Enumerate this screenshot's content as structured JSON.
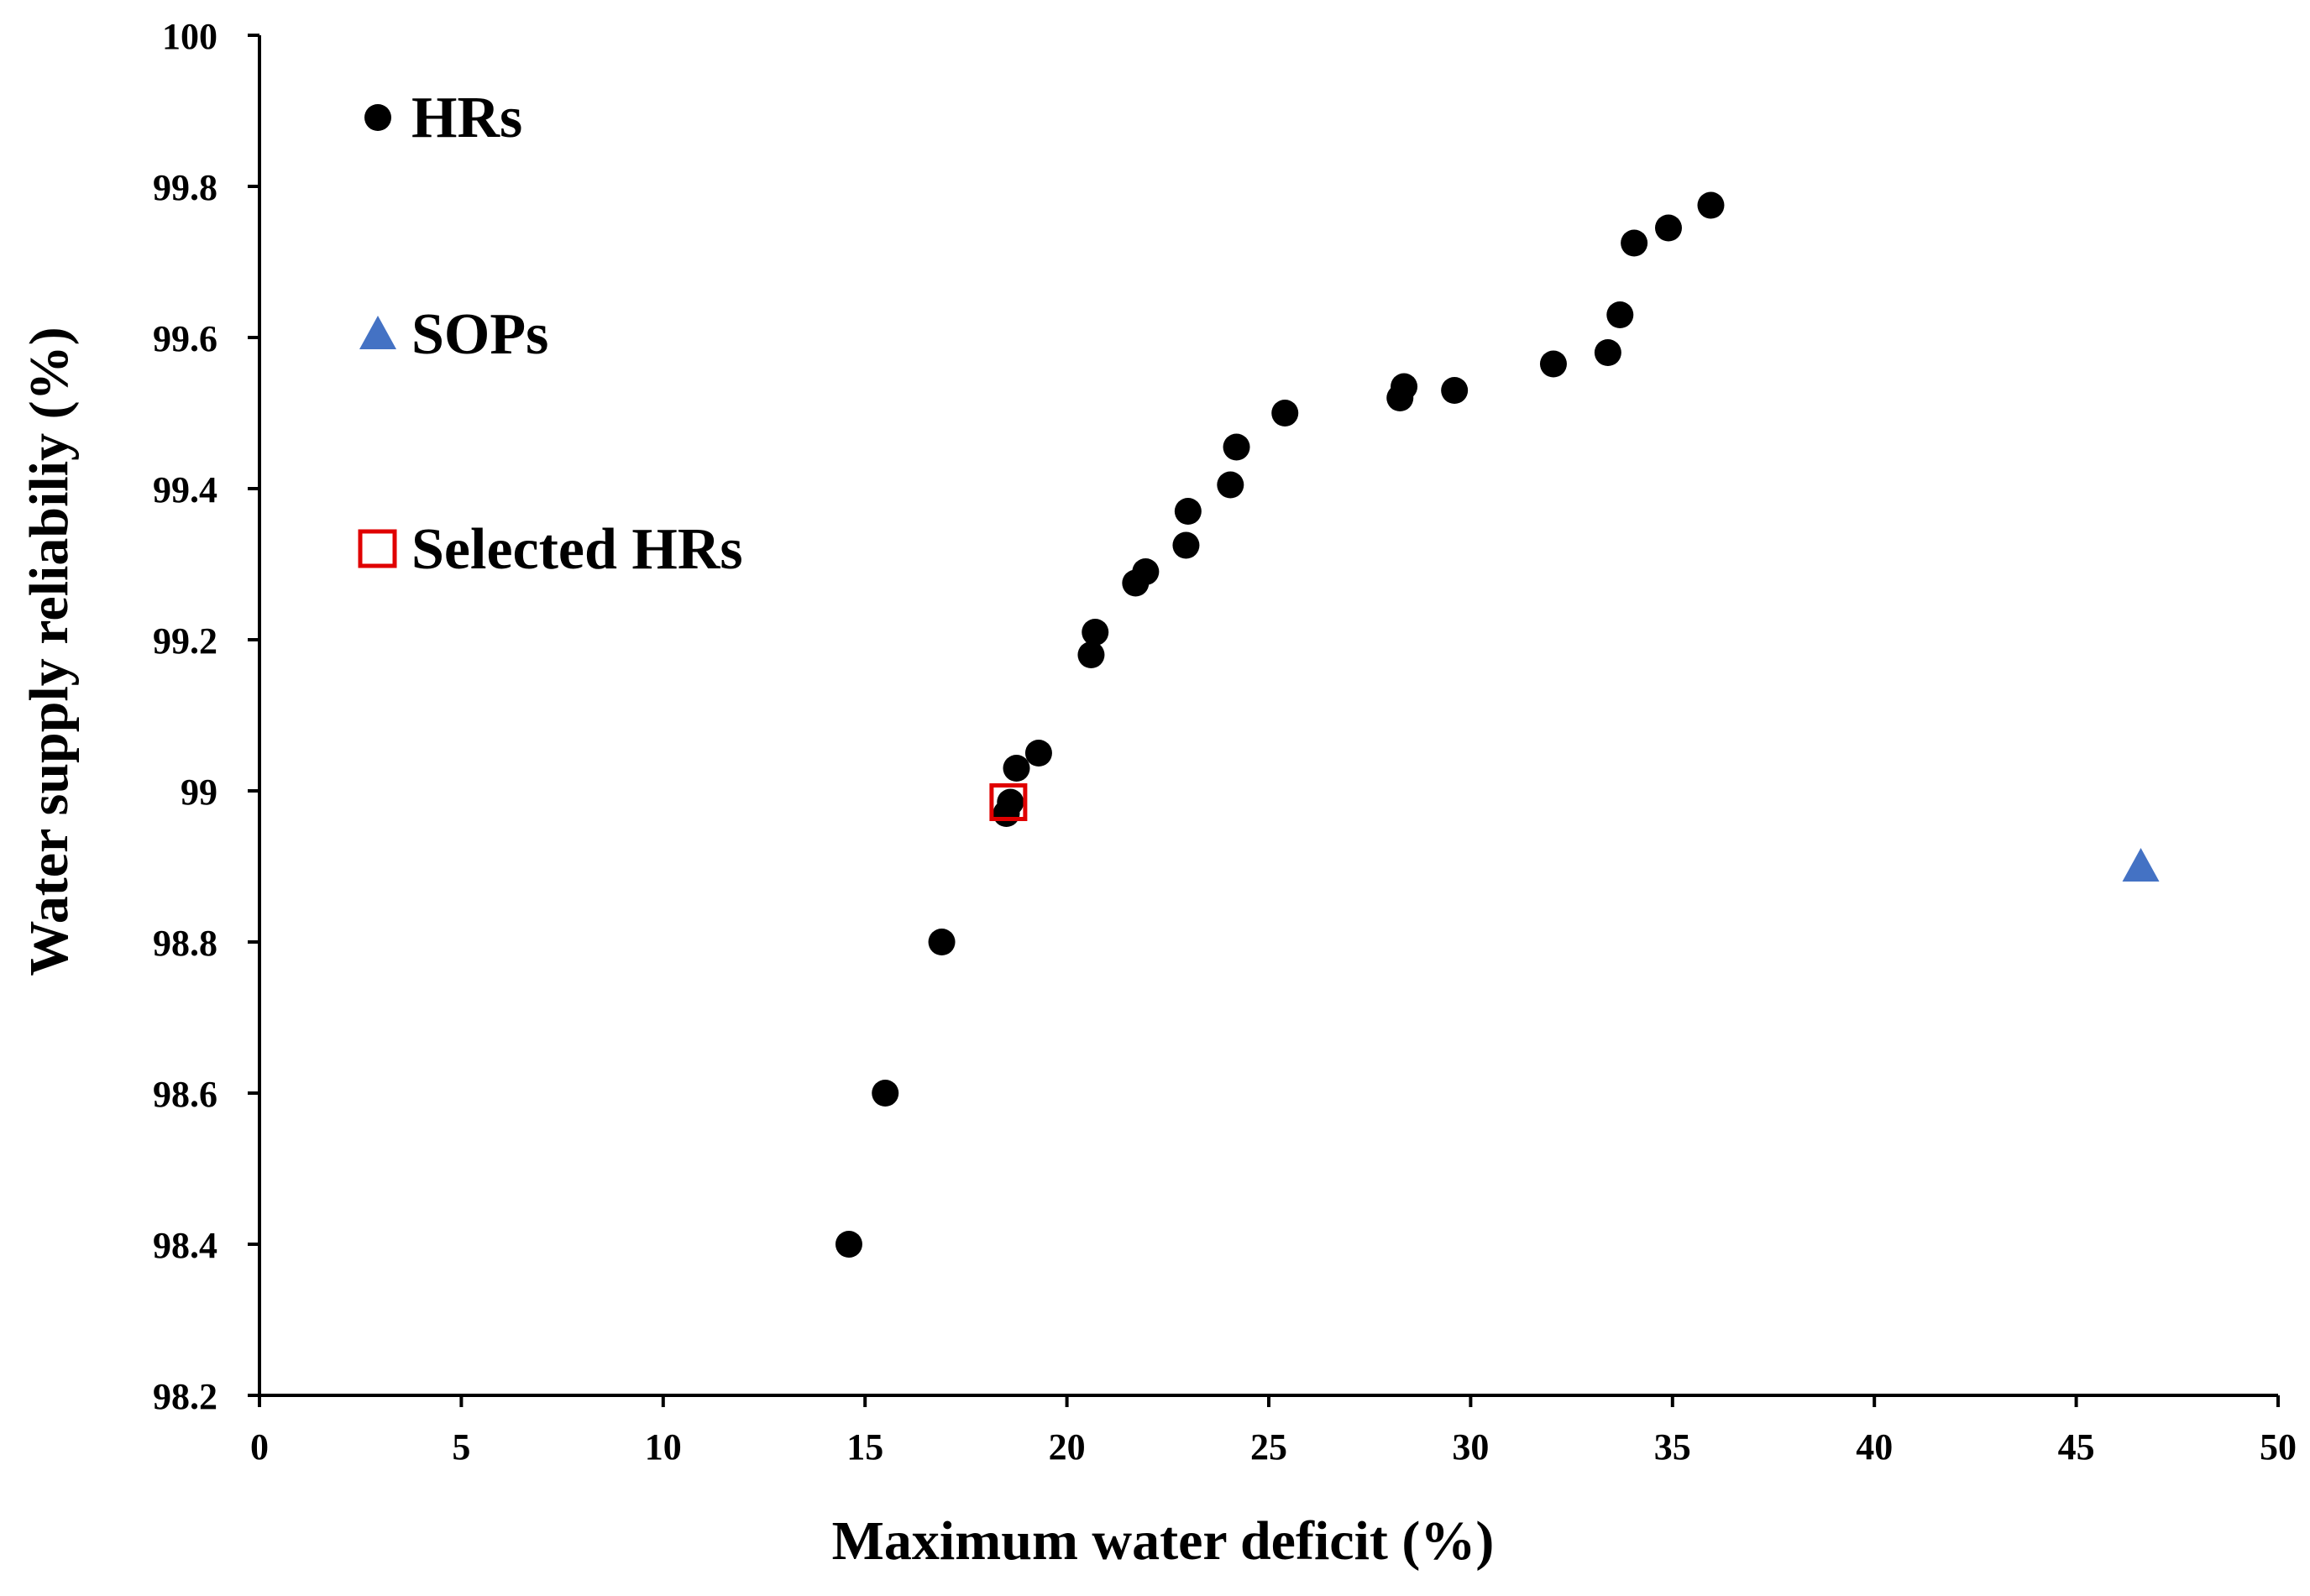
{
  "chart_data": {
    "type": "scatter",
    "title": "",
    "xlabel": "Maximum water deficit (%)",
    "ylabel": "Water supply reliabiliy (%)",
    "xlim": [
      0,
      50
    ],
    "ylim": [
      98.2,
      100
    ],
    "x_ticks": [
      "0",
      "5",
      "10",
      "15",
      "20",
      "25",
      "30",
      "35",
      "40",
      "45",
      "50"
    ],
    "y_ticks": [
      "98.2",
      "98.4",
      "98.6",
      "98.8",
      "99",
      "99.2",
      "99.4",
      "99.6",
      "99.8",
      "100"
    ],
    "grid": false,
    "legend_position": "top-left",
    "series": [
      {
        "name": "HRs",
        "marker": "circle",
        "color": "#000000",
        "points": [
          {
            "x": 14.6,
            "y": 98.4
          },
          {
            "x": 15.5,
            "y": 98.6
          },
          {
            "x": 16.9,
            "y": 98.8
          },
          {
            "x": 18.5,
            "y": 98.97
          },
          {
            "x": 18.6,
            "y": 98.985
          },
          {
            "x": 18.75,
            "y": 99.03
          },
          {
            "x": 19.3,
            "y": 99.05
          },
          {
            "x": 20.6,
            "y": 99.18
          },
          {
            "x": 20.7,
            "y": 99.21
          },
          {
            "x": 21.7,
            "y": 99.275
          },
          {
            "x": 21.95,
            "y": 99.29
          },
          {
            "x": 22.95,
            "y": 99.325
          },
          {
            "x": 23.0,
            "y": 99.37
          },
          {
            "x": 24.05,
            "y": 99.405
          },
          {
            "x": 24.2,
            "y": 99.455
          },
          {
            "x": 25.4,
            "y": 99.5
          },
          {
            "x": 28.25,
            "y": 99.52
          },
          {
            "x": 28.35,
            "y": 99.535
          },
          {
            "x": 29.6,
            "y": 99.53
          },
          {
            "x": 32.05,
            "y": 99.565
          },
          {
            "x": 33.4,
            "y": 99.58
          },
          {
            "x": 33.7,
            "y": 99.63
          },
          {
            "x": 34.05,
            "y": 99.725
          },
          {
            "x": 34.9,
            "y": 99.745
          },
          {
            "x": 35.95,
            "y": 99.775
          }
        ]
      },
      {
        "name": "SOPs",
        "marker": "triangle",
        "color": "#4472C4",
        "points": [
          {
            "x": 46.6,
            "y": 98.9
          }
        ]
      },
      {
        "name": "Selected HRs",
        "marker": "open-square",
        "color": "#E00000",
        "points": [
          {
            "x": 18.55,
            "y": 98.985
          }
        ]
      }
    ]
  }
}
